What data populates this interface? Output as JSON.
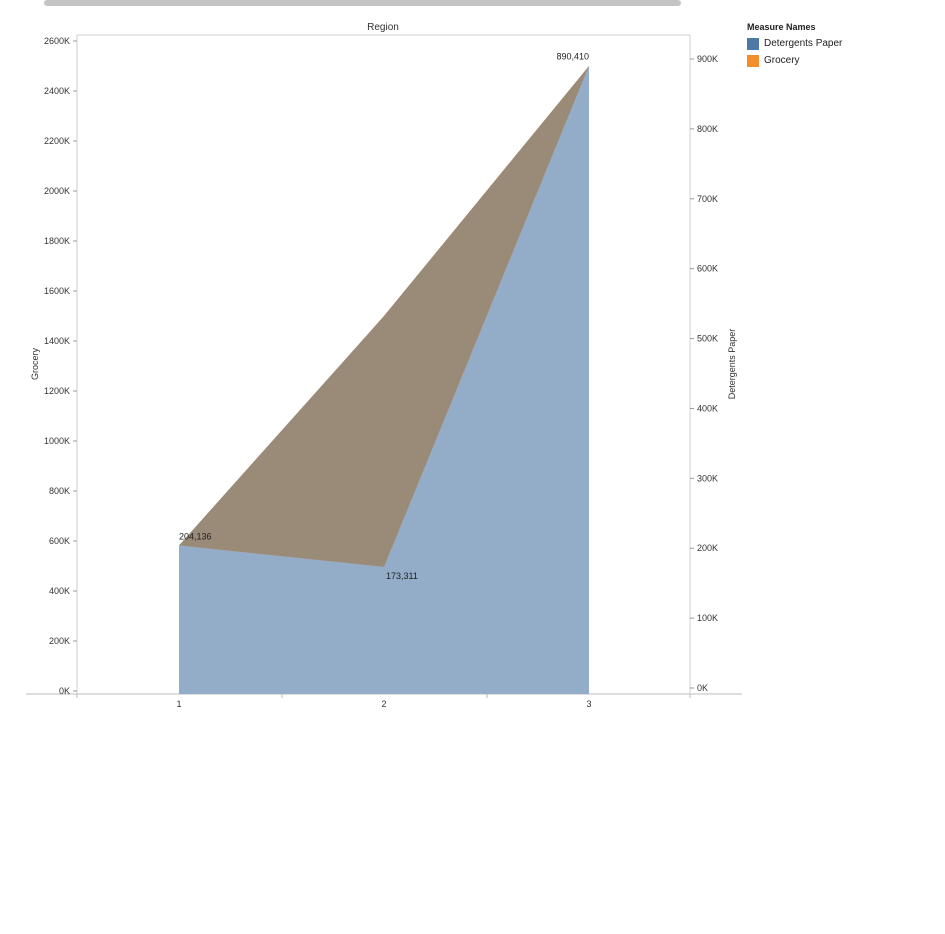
{
  "chart_data": {
    "type": "area",
    "title": "Region",
    "x_categories": [
      "1",
      "2",
      "3"
    ],
    "y_left": {
      "label": "Grocery",
      "range": [
        0,
        2600000
      ],
      "ticks": [
        "0K",
        "200K",
        "400K",
        "600K",
        "800K",
        "1000K",
        "1200K",
        "1400K",
        "1600K",
        "1800K",
        "2000K",
        "2200K",
        "2400K",
        "2600K"
      ]
    },
    "y_right": {
      "label": "Detergents Paper",
      "range": [
        0,
        930000
      ],
      "ticks": [
        "0K",
        "100K",
        "200K",
        "300K",
        "400K",
        "500K",
        "600K",
        "700K",
        "800K",
        "900K"
      ]
    },
    "series": [
      {
        "name": "Detergents Paper",
        "axis": "right",
        "color": "#93acc8",
        "values": [
          204136,
          173311,
          890410
        ]
      },
      {
        "name": "Grocery",
        "axis": "left",
        "color": "#f28e2c",
        "values": [
          570000,
          1500000,
          2500000
        ]
      }
    ],
    "data_labels": [
      "204,136",
      "173,311",
      "890,410"
    ],
    "grid": false,
    "legend_position": "right"
  },
  "legend": {
    "title": "Measure Names",
    "items": [
      {
        "label": "Detergents Paper",
        "color": "#4e79a7"
      },
      {
        "label": "Grocery",
        "color": "#f28e2c"
      }
    ]
  }
}
